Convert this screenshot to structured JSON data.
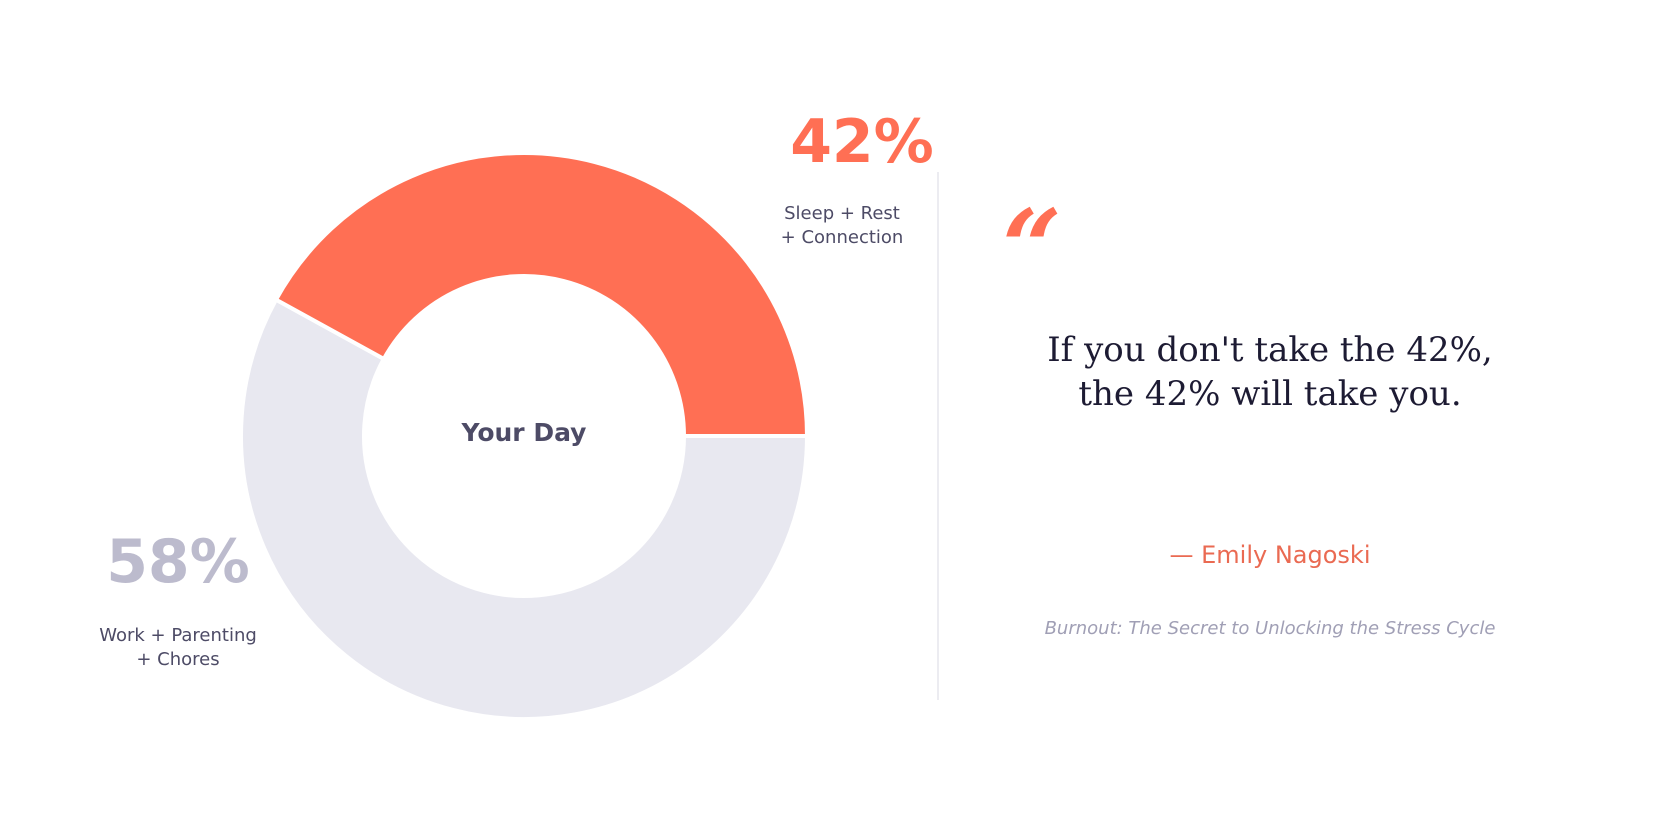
{
  "chart_data": {
    "type": "pie",
    "center_label": "Your Day",
    "series": [
      {
        "label": "Sleep + Rest + Connection",
        "value": 42,
        "display": "42%",
        "label_lines": [
          "Sleep + Rest",
          "+ Connection"
        ],
        "color": "#ff6f54"
      },
      {
        "label": "Work + Parenting + Chores",
        "value": 58,
        "display": "58%",
        "label_lines": [
          "Work + Parenting",
          "+ Chores"
        ],
        "color": "#e8e8f0"
      }
    ]
  },
  "quote": {
    "mark": "“",
    "lines": [
      "If you don't take the 42%,",
      "the 42% will take you."
    ],
    "author": "— Emily Nagoski",
    "source": "Burnout: The Secret to Unlocking the Stress Cycle"
  },
  "colors": {
    "accent": "#ff6f54",
    "muted_ring": "#e8e8f0",
    "muted_text": "#bcbbcd",
    "text": "#4d4b66"
  }
}
